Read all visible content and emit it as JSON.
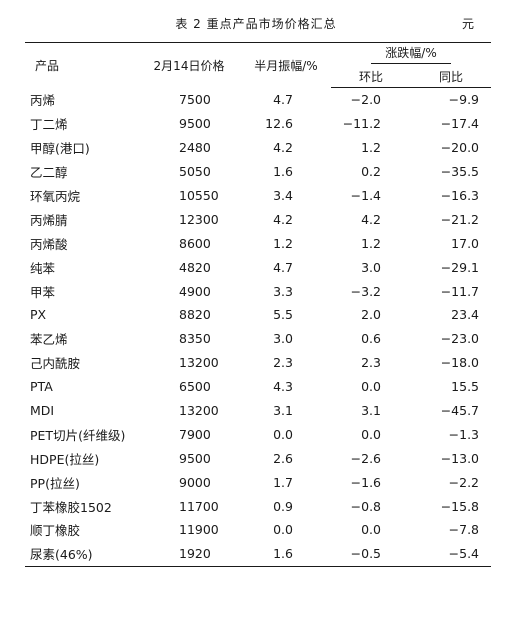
{
  "title": "表 2  重点产品市场价格汇总",
  "unit": "元",
  "headers": {
    "product": "产品",
    "price": "2月14日价格",
    "swing": "半月振幅/%",
    "change_group": "涨跌幅/%",
    "mom": "环比",
    "yoy": "同比"
  },
  "rows": [
    {
      "name": "丙烯",
      "price": "7500",
      "swing": "4.7",
      "mom": "−2.0",
      "yoy": "−9.9"
    },
    {
      "name": "丁二烯",
      "price": "9500",
      "swing": "12.6",
      "mom": "−11.2",
      "yoy": "−17.4"
    },
    {
      "name": "甲醇(港口)",
      "price": "2480",
      "swing": "4.2",
      "mom": "1.2",
      "yoy": "−20.0"
    },
    {
      "name": "乙二醇",
      "price": "5050",
      "swing": "1.6",
      "mom": "0.2",
      "yoy": "−35.5"
    },
    {
      "name": "环氧丙烷",
      "price": "10550",
      "swing": "3.4",
      "mom": "−1.4",
      "yoy": "−16.3"
    },
    {
      "name": "丙烯腈",
      "price": "12300",
      "swing": "4.2",
      "mom": "4.2",
      "yoy": "−21.2"
    },
    {
      "name": "丙烯酸",
      "price": "8600",
      "swing": "1.2",
      "mom": "1.2",
      "yoy": "17.0"
    },
    {
      "name": "纯苯",
      "price": "4820",
      "swing": "4.7",
      "mom": "3.0",
      "yoy": "−29.1"
    },
    {
      "name": "甲苯",
      "price": "4900",
      "swing": "3.3",
      "mom": "−3.2",
      "yoy": "−11.7"
    },
    {
      "name": "PX",
      "price": "8820",
      "swing": "5.5",
      "mom": "2.0",
      "yoy": "23.4"
    },
    {
      "name": "苯乙烯",
      "price": "8350",
      "swing": "3.0",
      "mom": "0.6",
      "yoy": "−23.0"
    },
    {
      "name": "己内酰胺",
      "price": "13200",
      "swing": "2.3",
      "mom": "2.3",
      "yoy": "−18.0"
    },
    {
      "name": "PTA",
      "price": "6500",
      "swing": "4.3",
      "mom": "0.0",
      "yoy": "15.5"
    },
    {
      "name": "MDI",
      "price": "13200",
      "swing": "3.1",
      "mom": "3.1",
      "yoy": "−45.7"
    },
    {
      "name": "PET切片(纤维级)",
      "price": "7900",
      "swing": "0.0",
      "mom": "0.0",
      "yoy": "−1.3"
    },
    {
      "name": "HDPE(拉丝)",
      "price": "9500",
      "swing": "2.6",
      "mom": "−2.6",
      "yoy": "−13.0"
    },
    {
      "name": "PP(拉丝)",
      "price": "9000",
      "swing": "1.7",
      "mom": "−1.6",
      "yoy": "−2.2"
    },
    {
      "name": "丁苯橡胶1502",
      "price": "11700",
      "swing": "0.9",
      "mom": "−0.8",
      "yoy": "−15.8"
    },
    {
      "name": "顺丁橡胶",
      "price": "11900",
      "swing": "0.0",
      "mom": "0.0",
      "yoy": "−7.8"
    },
    {
      "name": "尿素(46%)",
      "price": "1920",
      "swing": "1.6",
      "mom": "−0.5",
      "yoy": "−5.4"
    }
  ]
}
